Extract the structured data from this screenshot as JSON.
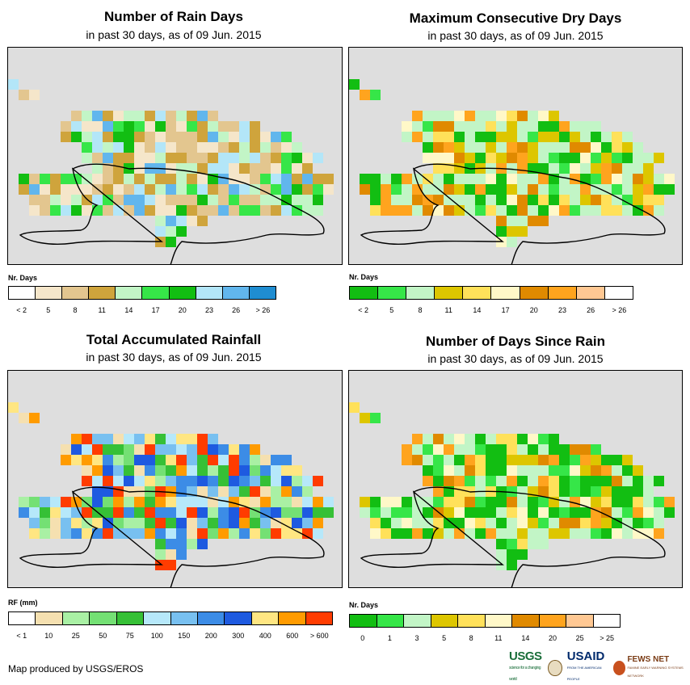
{
  "panels": [
    {
      "title": "Number of Rain Days",
      "subtitle": "in past 30 days, as of 09 Jun. 2015",
      "legend": {
        "unit": "Nr. Days",
        "colors": [
          "#ffffff",
          "#f5e6ca",
          "#e3c68f",
          "#cfa43c",
          "#c2f5c6",
          "#36e648",
          "#12be12",
          "#b3e6f8",
          "#61b6ed",
          "#1f8dd1"
        ],
        "ticks": [
          "< 2",
          "5",
          "8",
          "11",
          "14",
          "17",
          "20",
          "23",
          "26",
          "> 26"
        ]
      }
    },
    {
      "title": "Maximum Consecutive Dry Days",
      "subtitle": "in past 30 days, as of 09 Jun. 2015",
      "legend": {
        "unit": "Nr. Days",
        "colors": [
          "#12be12",
          "#36e648",
          "#c2f5c6",
          "#ddc600",
          "#ffe15a",
          "#fff8c8",
          "#e08a00",
          "#ffa41e",
          "#ffc893",
          "#ffffff"
        ],
        "ticks": [
          "< 2",
          "5",
          "8",
          "11",
          "14",
          "17",
          "20",
          "23",
          "26",
          "> 26"
        ]
      }
    },
    {
      "title": "Total Accumulated Rainfall",
      "subtitle": "in past 30 days, as of 09 Jun. 2015",
      "legend": {
        "unit": "RF (mm)",
        "colors": [
          "#ffffff",
          "#f5e0b0",
          "#a9f0a4",
          "#74e074",
          "#36c036",
          "#b6e8fa",
          "#78c0f0",
          "#3c8ce6",
          "#1e5ae0",
          "#ffe682",
          "#ff9b00",
          "#ff3c00"
        ],
        "ticks": [
          "< 1",
          "10",
          "25",
          "50",
          "75",
          "100",
          "150",
          "200",
          "300",
          "400",
          "600",
          "> 600"
        ]
      }
    },
    {
      "title": "Number of Days Since Rain",
      "subtitle": "in past 30 days, as of 09 Jun. 2015",
      "legend": {
        "unit": "Nr. Days",
        "colors": [
          "#12be12",
          "#36e648",
          "#c2f5c6",
          "#ddc600",
          "#ffe15a",
          "#fff8c8",
          "#e08a00",
          "#ffa41e",
          "#ffc893",
          "#ffffff"
        ],
        "ticks": [
          "0",
          "1",
          "3",
          "5",
          "8",
          "11",
          "14",
          "20",
          "25",
          "> 25"
        ]
      }
    }
  ],
  "credit": "Map produced by USGS/EROS",
  "logos": {
    "usgs": "USGS",
    "usgs_tagline": "science for a changing world",
    "usaid": "USAID",
    "usaid_tagline": "FROM THE AMERICAN PEOPLE",
    "fews": "FEWS NET",
    "fews_tagline": "FAMINE EARLY WARNING SYSTEMS NETWORK"
  }
}
